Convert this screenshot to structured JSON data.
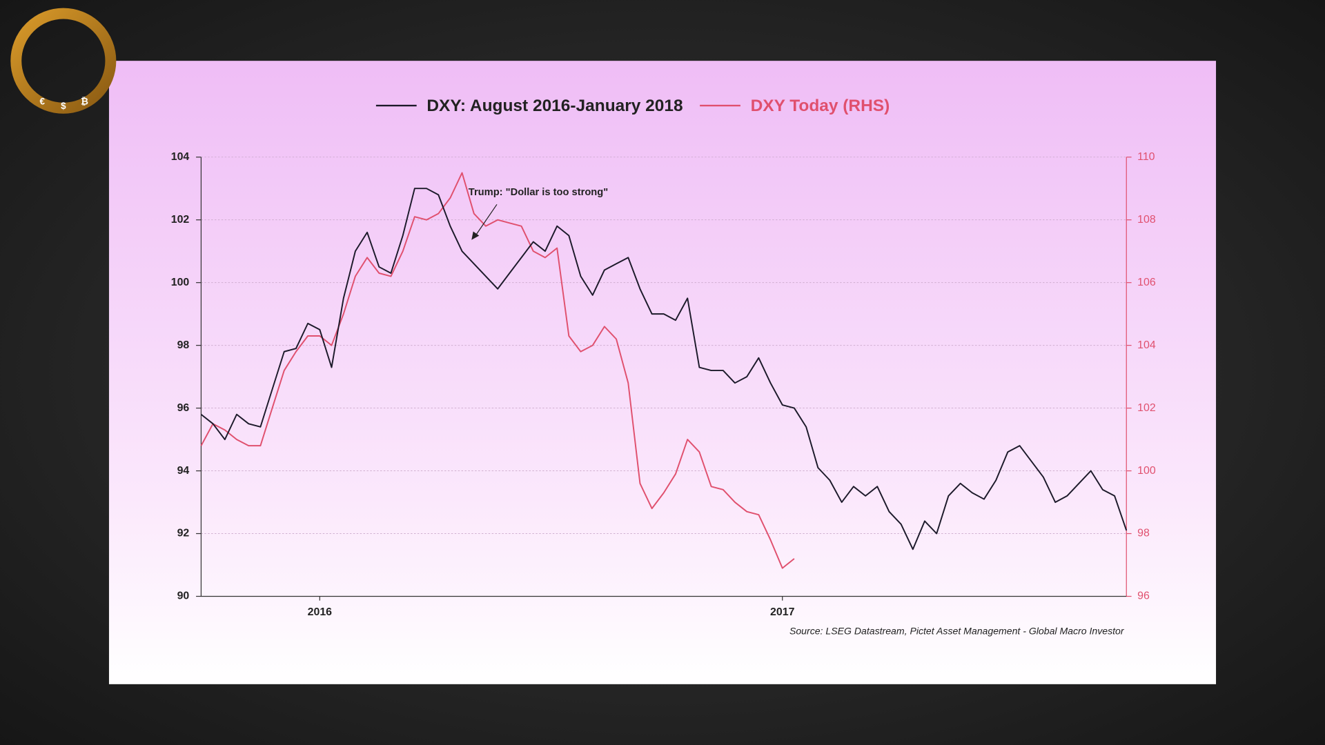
{
  "chart_data": {
    "type": "line",
    "x": [
      0,
      1,
      2,
      3,
      4,
      5,
      6,
      7,
      8,
      9,
      10,
      11,
      12,
      13,
      14,
      15,
      16,
      17,
      18,
      19,
      20,
      21,
      22,
      23,
      24,
      25,
      26,
      27,
      28,
      29,
      30,
      31,
      32,
      33,
      34,
      35,
      36,
      37,
      38,
      39,
      40,
      41,
      42,
      43,
      44,
      45,
      46,
      47,
      48,
      49,
      50,
      51,
      52,
      53,
      54,
      55,
      56,
      57,
      58,
      59,
      60,
      61,
      62,
      63,
      64,
      65,
      66,
      67,
      68,
      69,
      70,
      71,
      72,
      73,
      74,
      75,
      76,
      77,
      78
    ],
    "series": [
      {
        "name": "DXY: August 2016-January 2018",
        "color": "#1c1a2a",
        "axis": "y",
        "values": [
          95.8,
          95.5,
          95.0,
          95.8,
          95.5,
          95.4,
          96.6,
          97.8,
          97.9,
          98.7,
          98.5,
          97.3,
          99.5,
          101.0,
          101.6,
          100.5,
          100.3,
          101.5,
          103.0,
          103.0,
          102.8,
          101.8,
          101.0,
          100.6,
          100.2,
          99.8,
          100.3,
          100.8,
          101.3,
          101.0,
          101.8,
          101.5,
          100.2,
          99.6,
          100.4,
          100.6,
          100.8,
          99.8,
          99.0,
          99.0,
          98.8,
          99.5,
          97.3,
          97.2,
          97.2,
          96.8,
          97.0,
          97.6,
          96.8,
          96.1,
          96.0,
          95.4,
          94.1,
          93.7,
          93.0,
          93.5,
          93.2,
          93.5,
          92.7,
          92.3,
          91.5,
          92.4,
          92.0,
          93.2,
          93.6,
          93.3,
          93.1,
          93.7,
          94.6,
          94.8,
          94.3,
          93.8,
          93.0,
          93.2,
          93.6,
          94.0,
          93.4,
          93.2,
          92.1
        ]
      },
      {
        "name": "DXY Today (RHS)",
        "color": "#e0506e",
        "axis": "y2",
        "values": [
          100.8,
          101.5,
          101.3,
          101.0,
          100.8,
          100.8,
          102.0,
          103.2,
          103.8,
          104.3,
          104.3,
          104.0,
          105.0,
          106.2,
          106.8,
          106.3,
          106.2,
          107.0,
          108.1,
          108.0,
          108.2,
          108.7,
          109.5,
          108.2,
          107.8,
          108.0,
          107.9,
          107.8,
          107.0,
          106.8,
          107.1,
          104.3,
          103.8,
          104.0,
          104.6,
          104.2,
          102.8,
          99.6,
          98.8,
          99.3,
          99.9,
          101.0,
          100.6,
          99.5,
          99.4,
          99.0,
          98.7,
          98.6,
          97.8,
          96.9,
          97.2,
          null,
          null,
          null,
          null,
          null,
          null,
          null,
          null,
          null,
          null,
          null,
          null,
          null,
          null,
          null,
          null,
          null,
          null,
          null,
          null,
          null,
          null,
          null,
          null,
          null,
          null,
          null,
          null
        ]
      }
    ],
    "xlim": [
      0,
      78
    ],
    "xticks": [
      {
        "value": 10,
        "label": "2016"
      },
      {
        "value": 49,
        "label": "2017"
      }
    ],
    "ylim": [
      90,
      104
    ],
    "yticks": [
      90,
      92,
      94,
      96,
      98,
      100,
      102,
      104
    ],
    "y2lim": [
      96,
      110
    ],
    "y2ticks": [
      96,
      98,
      100,
      102,
      104,
      106,
      108,
      110
    ],
    "grid": true,
    "annotation": "Trump: \"Dollar is too strong\"",
    "source": "Source: LSEG Datastream, Pictet Asset Management - Global Macro Investor"
  }
}
